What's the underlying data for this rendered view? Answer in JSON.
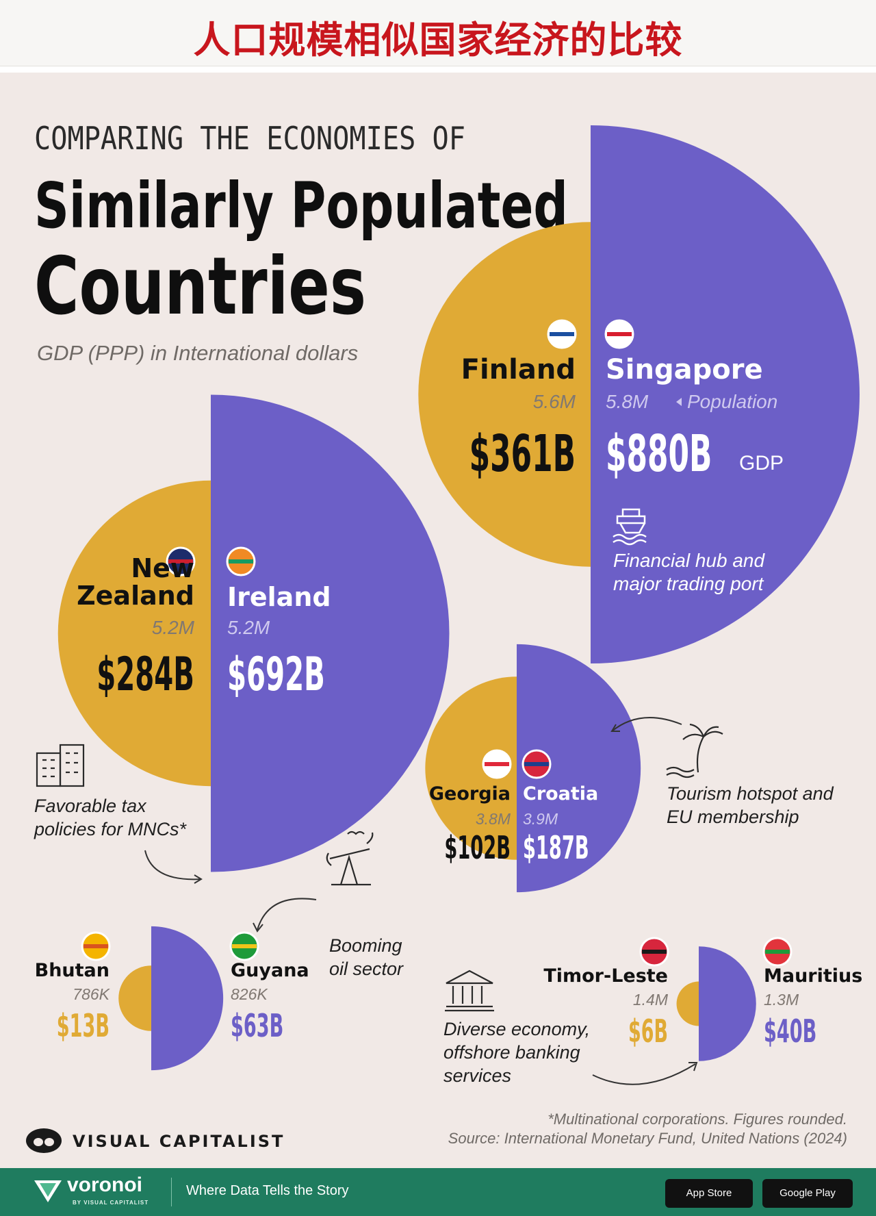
{
  "header": {
    "cn_title": "人口规模相似国家经济的比较"
  },
  "infographic": {
    "kicker": "COMPARING THE ECONOMIES OF",
    "title_line1": "Similarly Populated",
    "title_line2": "Countries",
    "subtitle": "GDP (PPP) in International dollars",
    "population_label": "Population",
    "gdp_label": "GDP",
    "notes": {
      "singapore": [
        "Financial hub and",
        "major trading port"
      ],
      "ireland": [
        "Favorable tax",
        "policies for MNCs*"
      ],
      "croatia": [
        "Tourism hotspot and",
        "EU membership"
      ],
      "guyana": [
        "Booming",
        "oil sector"
      ],
      "mauritius": [
        "Diverse economy,",
        "offshore banking",
        "services"
      ]
    },
    "footnote": "*Multinational corporations. Figures rounded.",
    "source": "Source: International Monetary Fund, United Nations (2024)",
    "brand": "VISUAL CAPITALIST"
  },
  "chart_data": {
    "type": "paired-semicircle",
    "measure": "GDP (PPP), international dollars, billions",
    "colors": {
      "left": "#e0aa35",
      "right": "#6c5fc7"
    },
    "pairs": [
      {
        "left": {
          "country": "Finland",
          "population": "5.6M",
          "gdp_label": "$361B",
          "gdp_billions": 361
        },
        "right": {
          "country": "Singapore",
          "population": "5.8M",
          "gdp_label": "$880B",
          "gdp_billions": 880
        }
      },
      {
        "left": {
          "country": "New Zealand",
          "population": "5.2M",
          "gdp_label": "$284B",
          "gdp_billions": 284
        },
        "right": {
          "country": "Ireland",
          "population": "5.2M",
          "gdp_label": "$692B",
          "gdp_billions": 692
        }
      },
      {
        "left": {
          "country": "Georgia",
          "population": "3.8M",
          "gdp_label": "$102B",
          "gdp_billions": 102
        },
        "right": {
          "country": "Croatia",
          "population": "3.9M",
          "gdp_label": "$187B",
          "gdp_billions": 187
        }
      },
      {
        "left": {
          "country": "Bhutan",
          "population": "786K",
          "gdp_label": "$13B",
          "gdp_billions": 13
        },
        "right": {
          "country": "Guyana",
          "population": "826K",
          "gdp_label": "$63B",
          "gdp_billions": 63
        }
      },
      {
        "left": {
          "country": "Timor-Leste",
          "population": "1.4M",
          "gdp_label": "$6B",
          "gdp_billions": 6
        },
        "right": {
          "country": "Mauritius",
          "population": "1.3M",
          "gdp_label": "$40B",
          "gdp_billions": 40
        }
      }
    ]
  },
  "footer": {
    "brand": "voronoi",
    "brand_sub": "BY VISUAL CAPITALIST",
    "tagline": "Where Data Tells the Story",
    "app_store": "App Store",
    "google_play": "Google Play"
  }
}
